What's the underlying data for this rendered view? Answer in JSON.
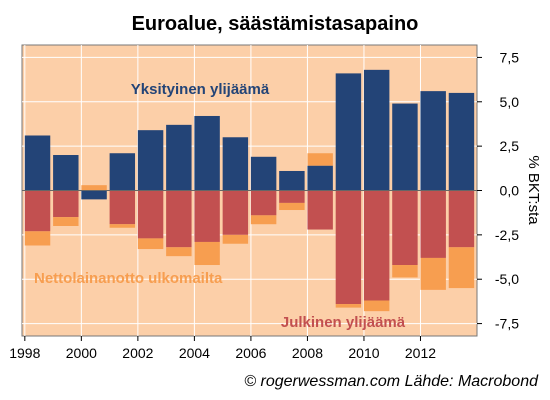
{
  "colors": {
    "background": "#fccfa8",
    "private": "#234477",
    "public": "#c25050",
    "external": "#f79e50",
    "grid": "#ffffff"
  },
  "chart_data": {
    "type": "bar",
    "stacked": true,
    "title": "Euroalue, säästämistasapaino",
    "ylabel": "% BKT:sta",
    "ylim": [
      -8.2,
      8.2
    ],
    "yticks": [
      -7.5,
      -5.0,
      -2.5,
      0.0,
      2.5,
      5.0,
      7.5
    ],
    "ytick_labels": [
      "-7,5",
      "-5,0",
      "-2,5",
      "0,0",
      "2,5",
      "5,0",
      "7,5"
    ],
    "xlim": [
      1997.9,
      2014.0
    ],
    "xticks": [
      1998,
      2000,
      2002,
      2004,
      2006,
      2008,
      2010,
      2012
    ],
    "x": [
      1998,
      1999,
      2000,
      2001,
      2002,
      2003,
      2004,
      2005,
      2006,
      2007,
      2008,
      2009,
      2010,
      2011,
      2012,
      2013
    ],
    "series": [
      {
        "name": "Yksityinen ylijäämä",
        "color_key": "private",
        "values": [
          3.1,
          2.0,
          -0.5,
          2.1,
          3.4,
          3.7,
          4.2,
          3.0,
          1.9,
          1.1,
          1.4,
          6.6,
          6.8,
          4.9,
          5.6,
          5.5
        ]
      },
      {
        "name": "Julkinen ylijäämä",
        "color_key": "public",
        "values": [
          -2.3,
          -1.5,
          0.0,
          -1.9,
          -2.7,
          -3.2,
          -2.9,
          -2.5,
          -1.4,
          -0.7,
          -2.2,
          -6.4,
          -6.2,
          -4.2,
          -3.8,
          -3.2
        ]
      },
      {
        "name": "Nettolainanotto ulkomailta",
        "color_key": "external",
        "values": [
          -0.8,
          -0.5,
          0.3,
          -0.2,
          -0.6,
          -0.5,
          -1.3,
          -0.5,
          -0.5,
          -0.4,
          0.7,
          -0.2,
          -0.6,
          -0.7,
          -1.8,
          -2.3
        ]
      }
    ],
    "annotations": [
      {
        "text": "Yksityinen ylijäämä",
        "color_key": "private"
      },
      {
        "text": "Nettolainanotto ulkomailta",
        "color_key": "external"
      },
      {
        "text": "Julkinen ylijäämä",
        "color_key": "public"
      }
    ],
    "credit": "© rogerwessman.com Lähde: Macrobond",
    "grid": true
  }
}
